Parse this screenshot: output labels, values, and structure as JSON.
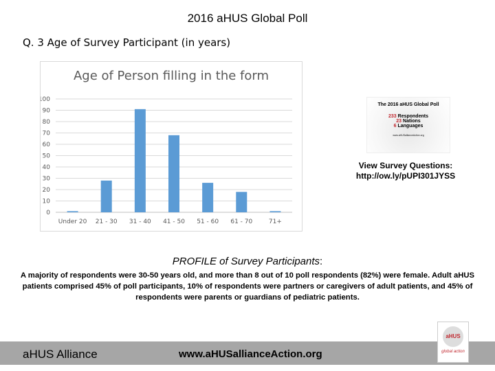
{
  "title": "2016 aHUS Global Poll",
  "question": "Q. 3   Age of Survey Participant (in years)",
  "chart_data": {
    "type": "bar",
    "title": "Age of Person filling in the form",
    "categories": [
      "Under 20",
      "21 - 30",
      "31 - 40",
      "41 - 50",
      "51 - 60",
      "61 - 70",
      "71+"
    ],
    "values": [
      1,
      28,
      91,
      68,
      26,
      18,
      1
    ],
    "ylim": [
      0,
      100
    ],
    "yticks": [
      0,
      10,
      20,
      30,
      40,
      50,
      60,
      70,
      80,
      90,
      100
    ],
    "grid": true,
    "color": "#5b9bd5",
    "xlabel": "",
    "ylabel": ""
  },
  "poll_image": {
    "title": "The 2016 aHUS Global Poll",
    "line1_num": "233",
    "line1": "Respondents",
    "line2_num": "23",
    "line2": "Nations",
    "line3_num": "6",
    "line3": "Languages",
    "url": "www.aHUSallianceAction.org"
  },
  "survey": {
    "label": "View Survey Questions:",
    "link": "http://ow.ly/pUPI301JYSS"
  },
  "profile": {
    "heading_em": "PROFILE of Survey Participants",
    "heading_suffix": ":",
    "text": "A majority of respondents were 30-50 years old, and more than 8 out of 10 poll respondents (82%) were female. Adult aHUS patients comprised 45% of poll participants, 10% of respondents were partners or caregivers of adult patients, and 45% of respondents were parents or guardians of pediatric patients."
  },
  "footer": {
    "name": "aHUS Alliance",
    "url": "www.aHUSallianceAction.org",
    "logo_text": "aHUS alliance global action"
  }
}
